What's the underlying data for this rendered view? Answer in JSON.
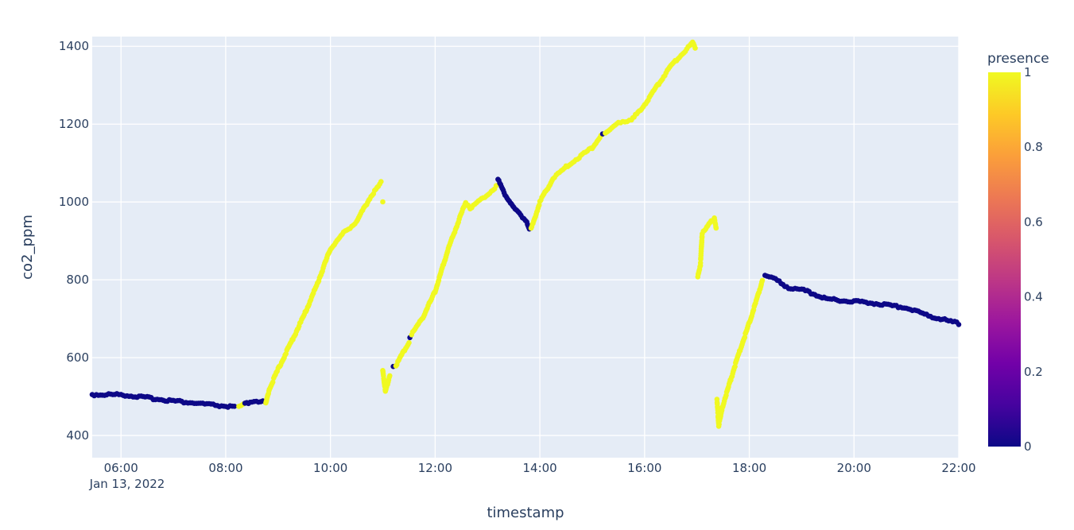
{
  "chart_data": {
    "type": "scatter",
    "title": "",
    "xlabel": "timestamp",
    "ylabel": "co2_ppm",
    "x_date_label": "Jan 13, 2022",
    "x_range": [
      "05:27",
      "22:00"
    ],
    "ylim": [
      343,
      1425
    ],
    "x_ticks": [
      "06:00",
      "08:00",
      "10:00",
      "12:00",
      "14:00",
      "16:00",
      "18:00",
      "20:00",
      "22:00"
    ],
    "y_ticks": [
      400,
      600,
      800,
      1000,
      1200,
      1400
    ],
    "grid": true,
    "background": "#e5ecf6",
    "colorbar": {
      "title": "presence",
      "range": [
        0,
        1
      ],
      "ticks": [
        "0",
        "0.2",
        "0.4",
        "0.6",
        "0.8",
        "1"
      ],
      "colorscale": [
        "#0d0887",
        "#46039f",
        "#7201a8",
        "#9c179e",
        "#bd3786",
        "#d8576b",
        "#ed7953",
        "#fb9f3a",
        "#fdca26",
        "#f0f921"
      ]
    },
    "segments": [
      {
        "presence": 0,
        "points": [
          [
            "05:27",
            505
          ],
          [
            "06:00",
            505
          ],
          [
            "07:00",
            489
          ],
          [
            "08:00",
            475
          ],
          [
            "08:10",
            473
          ]
        ]
      },
      {
        "presence": 1,
        "points": [
          [
            "08:15",
            473
          ],
          [
            "08:20",
            478
          ]
        ]
      },
      {
        "presence": 0,
        "points": [
          [
            "08:22",
            480
          ],
          [
            "08:30",
            488
          ],
          [
            "08:40",
            488
          ],
          [
            "08:45",
            484
          ]
        ]
      },
      {
        "presence": 1,
        "points": [
          [
            "08:46",
            481
          ],
          [
            "08:50",
            520
          ],
          [
            "09:00",
            570
          ],
          [
            "09:15",
            640
          ],
          [
            "09:30",
            710
          ],
          [
            "09:45",
            790
          ],
          [
            "10:00",
            880
          ],
          [
            "10:15",
            920
          ],
          [
            "10:30",
            950
          ],
          [
            "10:45",
            1010
          ],
          [
            "10:55",
            1040
          ],
          [
            "10:58",
            1050
          ]
        ]
      },
      {
        "presence": 1,
        "points": [
          [
            "11:00",
            1000
          ]
        ]
      },
      {
        "presence": 1,
        "points": [
          [
            "11:00",
            570
          ],
          [
            "11:03",
            512
          ],
          [
            "11:08",
            555
          ]
        ]
      },
      {
        "presence": 0,
        "points": [
          [
            "11:12",
            580
          ]
        ]
      },
      {
        "presence": 1,
        "points": [
          [
            "11:15",
            580
          ],
          [
            "11:25",
            620
          ],
          [
            "11:30",
            640
          ]
        ]
      },
      {
        "presence": 0,
        "points": [
          [
            "11:31",
            652
          ]
        ]
      },
      {
        "presence": 1,
        "points": [
          [
            "11:33",
            660
          ],
          [
            "11:45",
            700
          ],
          [
            "12:00",
            770
          ],
          [
            "12:15",
            880
          ],
          [
            "12:30",
            970
          ],
          [
            "12:35",
            1000
          ],
          [
            "12:40",
            985
          ],
          [
            "12:55",
            1010
          ],
          [
            "13:10",
            1040
          ]
        ]
      },
      {
        "presence": 0,
        "points": [
          [
            "13:12",
            1058
          ],
          [
            "13:20",
            1020
          ],
          [
            "13:30",
            985
          ],
          [
            "13:45",
            950
          ],
          [
            "13:48",
            930
          ]
        ]
      },
      {
        "presence": 1,
        "points": [
          [
            "13:50",
            930
          ],
          [
            "14:00",
            1000
          ],
          [
            "14:15",
            1060
          ],
          [
            "14:30",
            1090
          ],
          [
            "15:00",
            1140
          ],
          [
            "15:10",
            1170
          ]
        ]
      },
      {
        "presence": 0,
        "points": [
          [
            "15:12",
            1172
          ]
        ]
      },
      {
        "presence": 1,
        "points": [
          [
            "15:15",
            1175
          ],
          [
            "15:30",
            1205
          ],
          [
            "15:45",
            1210
          ],
          [
            "16:00",
            1250
          ],
          [
            "16:15",
            1300
          ],
          [
            "16:30",
            1350
          ],
          [
            "16:45",
            1385
          ],
          [
            "16:55",
            1410
          ],
          [
            "16:58",
            1395
          ]
        ]
      },
      {
        "presence": 1,
        "points": [
          [
            "17:01",
            810
          ],
          [
            "17:04",
            840
          ],
          [
            "17:06",
            920
          ],
          [
            "17:10",
            930
          ],
          [
            "17:15",
            945
          ],
          [
            "17:20",
            960
          ],
          [
            "17:22",
            932
          ]
        ]
      },
      {
        "presence": 1,
        "points": [
          [
            "17:23",
            490
          ],
          [
            "17:25",
            425
          ],
          [
            "17:30",
            480
          ],
          [
            "17:45",
            590
          ],
          [
            "18:00",
            690
          ],
          [
            "18:10",
            760
          ],
          [
            "18:15",
            800
          ]
        ]
      },
      {
        "presence": 0,
        "points": [
          [
            "18:18",
            810
          ],
          [
            "18:30",
            800
          ],
          [
            "18:45",
            780
          ],
          [
            "19:00",
            775
          ],
          [
            "19:30",
            750
          ],
          [
            "20:00",
            745
          ],
          [
            "20:30",
            738
          ],
          [
            "21:00",
            728
          ],
          [
            "21:30",
            705
          ],
          [
            "22:00",
            688
          ]
        ]
      }
    ]
  }
}
